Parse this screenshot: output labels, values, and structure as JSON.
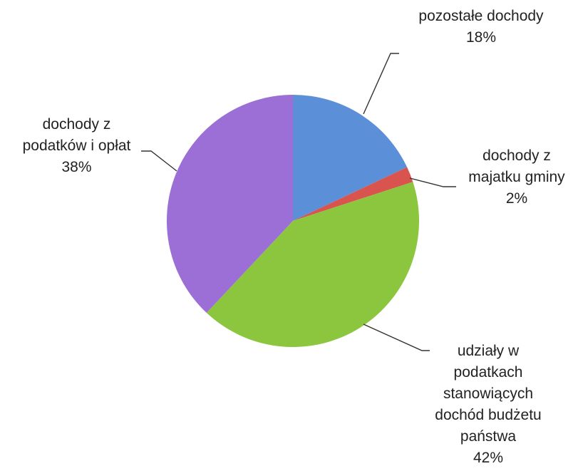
{
  "chart_data": {
    "type": "pie",
    "start_angle_deg": 0,
    "direction": "clockwise",
    "slices": [
      {
        "label_lines": [
          "pozostałe dochody"
        ],
        "percent_text": "18%",
        "value": 18,
        "color": "#5b8fd8"
      },
      {
        "label_lines": [
          "dochody z",
          "majatku gminy"
        ],
        "percent_text": "2%",
        "value": 2,
        "color": "#d9534f"
      },
      {
        "label_lines": [
          "udziały w",
          "podatkach",
          "stanowiących",
          "dochód budżetu",
          "państwa"
        ],
        "percent_text": "42%",
        "value": 42,
        "color": "#8cc63f"
      },
      {
        "label_lines": [
          "dochody z",
          "podatków i opłat"
        ],
        "percent_text": "38%",
        "value": 38,
        "color": "#9b6fd6"
      }
    ]
  }
}
